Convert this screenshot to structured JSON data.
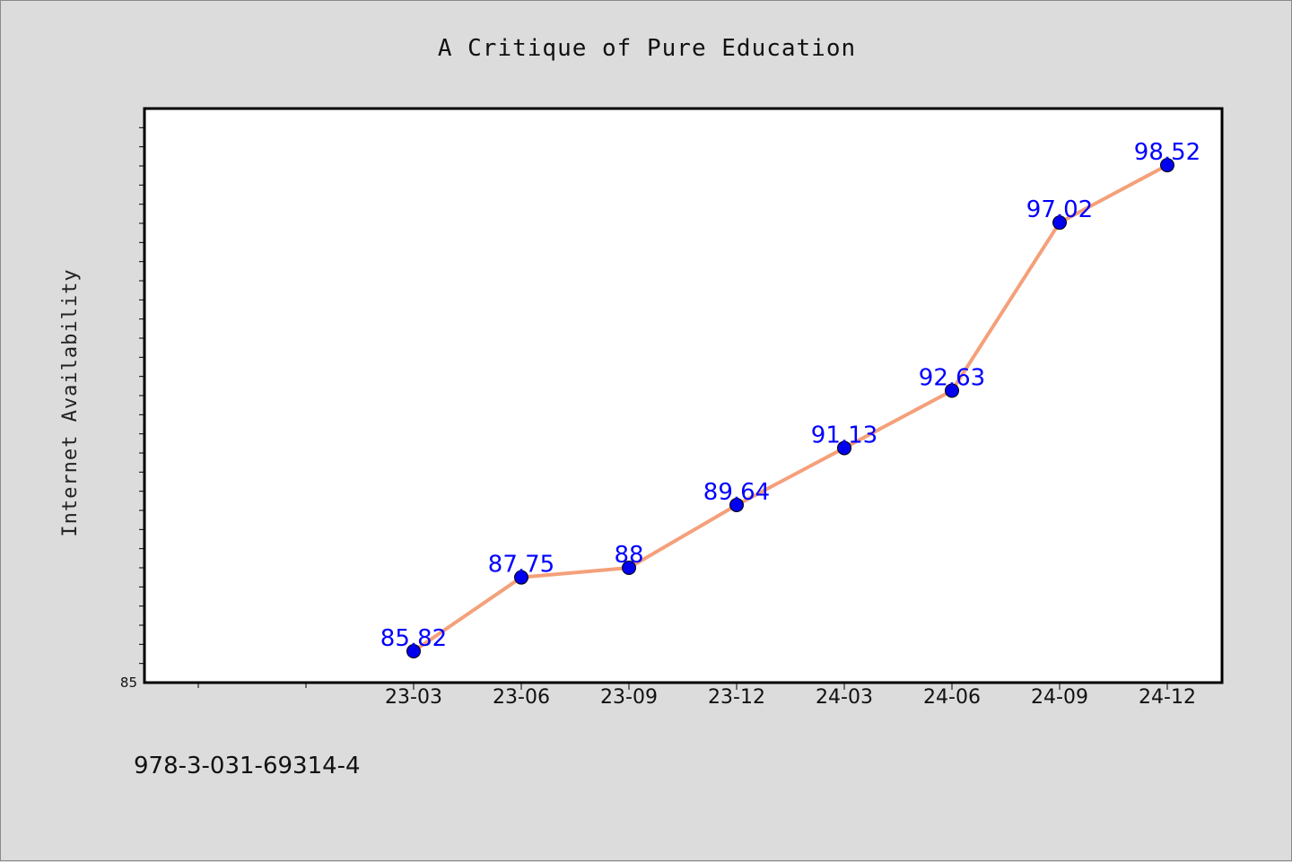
{
  "chart_data": {
    "type": "line",
    "title": "A Critique of Pure Education",
    "xlabel": "",
    "ylabel": "Internet Availability",
    "categories": [
      "23-03",
      "23-06",
      "23-09",
      "23-12",
      "24-03",
      "24-06",
      "24-09",
      "24-12"
    ],
    "series": [
      {
        "values": [
          85.82,
          87.75,
          88,
          89.64,
          91.13,
          92.63,
          97.02,
          98.52
        ],
        "labels": [
          "85.82",
          "87.75",
          "88",
          "89.64",
          "91.13",
          "92.63",
          "97.02",
          "98.52"
        ]
      }
    ],
    "ylim": [
      85,
      100
    ],
    "y_tick_labels": [
      "85"
    ],
    "grid": false,
    "legend": "none",
    "line_color": "#f4a07a",
    "marker_color": "#0000ee",
    "label_color": "#0000ff"
  },
  "footer": {
    "isbn": "978-3-031-69314-4"
  }
}
